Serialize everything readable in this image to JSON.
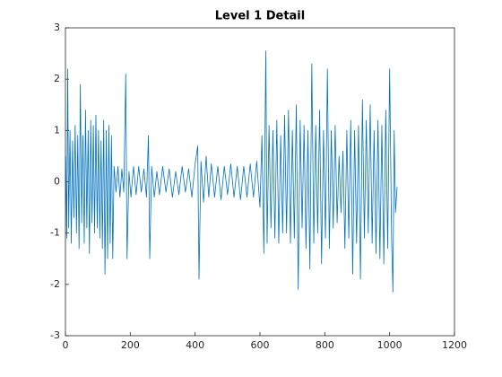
{
  "chart_data": {
    "type": "line",
    "title": "Level 1 Detail",
    "x": [
      1,
      4,
      7,
      10,
      14,
      18,
      22,
      26,
      30,
      34,
      38,
      42,
      46,
      50,
      54,
      58,
      62,
      66,
      70,
      74,
      78,
      82,
      86,
      90,
      94,
      98,
      102,
      106,
      110,
      114,
      118,
      122,
      126,
      130,
      134,
      138,
      142,
      146,
      150,
      156,
      162,
      168,
      174,
      180,
      186,
      190,
      196,
      202,
      210,
      218,
      226,
      234,
      242,
      250,
      256,
      260,
      266,
      274,
      282,
      290,
      300,
      310,
      320,
      330,
      340,
      350,
      360,
      370,
      380,
      390,
      400,
      408,
      412,
      418,
      426,
      434,
      442,
      450,
      460,
      470,
      480,
      490,
      500,
      510,
      520,
      530,
      540,
      550,
      560,
      570,
      580,
      590,
      600,
      606,
      612,
      618,
      622,
      628,
      634,
      640,
      646,
      652,
      658,
      664,
      670,
      676,
      682,
      688,
      694,
      700,
      706,
      712,
      718,
      724,
      730,
      736,
      742,
      748,
      754,
      760,
      766,
      772,
      778,
      784,
      790,
      796,
      802,
      808,
      814,
      820,
      826,
      832,
      838,
      844,
      850,
      856,
      862,
      868,
      874,
      880,
      886,
      892,
      898,
      904,
      910,
      916,
      922,
      928,
      934,
      940,
      946,
      952,
      958,
      964,
      970,
      976,
      982,
      988,
      994,
      1000,
      1006,
      1010,
      1014,
      1018,
      1023
    ],
    "series": [
      {
        "color": "#0072bd",
        "values": [
          0.5,
          -1.1,
          2.2,
          -0.9,
          1.0,
          -1.2,
          0.8,
          -0.7,
          1.1,
          -1.0,
          0.9,
          -1.3,
          1.9,
          -0.8,
          0.9,
          -1.2,
          1.4,
          -0.9,
          1.0,
          -1.4,
          1.2,
          -0.8,
          1.1,
          -1.0,
          1.3,
          -0.9,
          1.0,
          -1.1,
          0.8,
          -1.3,
          1.2,
          -1.8,
          1.0,
          -1.5,
          1.1,
          -1.2,
          0.9,
          -1.5,
          0.3,
          -0.2,
          0.3,
          -0.3,
          0.25,
          -0.2,
          2.1,
          -1.5,
          0.2,
          -0.3,
          0.3,
          -0.25,
          0.3,
          -0.2,
          0.25,
          -0.3,
          0.9,
          -1.5,
          0.3,
          -0.3,
          0.2,
          -0.25,
          0.3,
          -0.2,
          0.25,
          -0.3,
          0.2,
          -0.25,
          0.3,
          -0.2,
          0.25,
          -0.3,
          0.35,
          0.7,
          -1.9,
          0.4,
          -0.4,
          0.5,
          -0.3,
          0.35,
          -0.3,
          0.3,
          -0.35,
          0.3,
          -0.25,
          0.35,
          -0.3,
          0.3,
          -0.35,
          0.3,
          -0.3,
          0.35,
          -0.3,
          0.4,
          -0.5,
          0.9,
          -1.4,
          2.55,
          -1.2,
          1.1,
          -0.9,
          1.0,
          -1.1,
          1.2,
          -1.2,
          0.9,
          -1.0,
          1.3,
          -1.0,
          1.4,
          -1.2,
          1.0,
          -1.1,
          1.5,
          -2.1,
          1.2,
          -0.9,
          1.1,
          -1.3,
          1.0,
          -1.7,
          2.3,
          -1.2,
          1.1,
          -1.0,
          1.4,
          -1.6,
          1.0,
          -1.1,
          2.2,
          -1.3,
          1.0,
          -0.9,
          1.1,
          -0.8,
          0.5,
          -0.6,
          0.6,
          -1.3,
          1.0,
          -1.1,
          1.2,
          -1.8,
          1.0,
          -1.2,
          1.1,
          -1.9,
          1.6,
          -1.1,
          1.2,
          -1.0,
          1.5,
          -1.2,
          1.0,
          -1.4,
          1.2,
          -1.5,
          1.1,
          -1.6,
          1.4,
          -1.3,
          2.2,
          -1.1,
          -2.15,
          1.0,
          -0.6,
          -0.1
        ]
      }
    ],
    "xlim": [
      0,
      1200
    ],
    "xticks": [
      0,
      200,
      400,
      600,
      800,
      1000,
      1200
    ],
    "ylim": [
      -3,
      3
    ],
    "yticks": [
      -3,
      -2,
      -1,
      0,
      1,
      2,
      3
    ]
  }
}
